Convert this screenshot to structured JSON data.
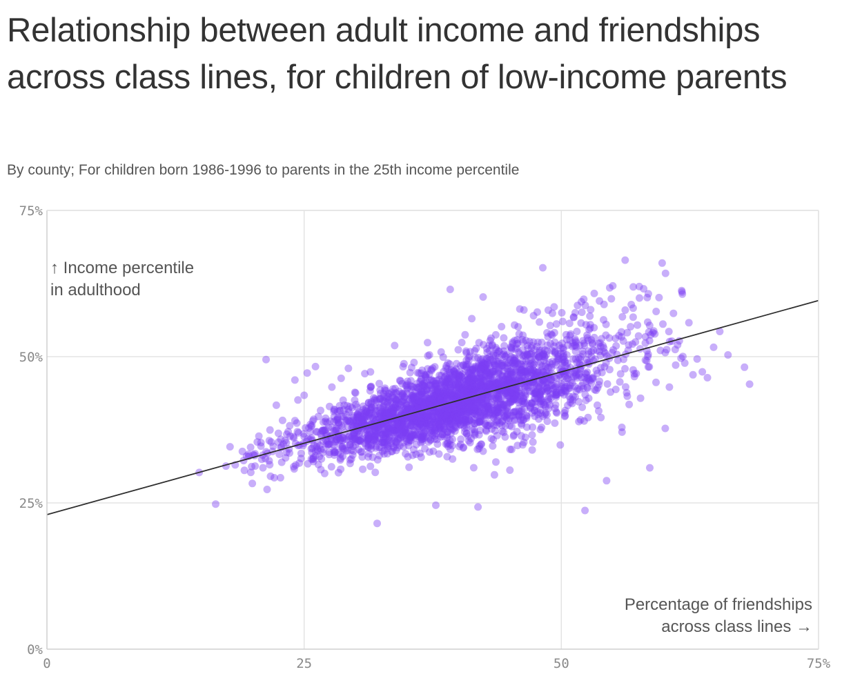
{
  "header": {
    "title": "Relationship between adult income and friendships across class lines, for children of low-income parents",
    "subtitle": "By county; For children born 1986-1996 to parents in the 25th income percentile"
  },
  "colors": {
    "point": "#7b3ff2",
    "trend_line": "#2e2e2e",
    "grid": "#e3e3e3",
    "axis": "#cfcfcf",
    "text": "#333333"
  },
  "chart_data": {
    "type": "scatter",
    "title": "Relationship between adult income and friendships across class lines, for children of low-income parents",
    "subtitle": "By county; For children born 1986-1996 to parents in the 25th income percentile",
    "xlabel": "Percentage of friendships across class lines",
    "xlabel_lines": [
      "Percentage of friendships",
      "across class lines →"
    ],
    "ylabel": "Income percentile in adulthood",
    "ylabel_lines": [
      "↑ Income percentile",
      "in adulthood"
    ],
    "xlim": [
      0,
      75
    ],
    "ylim": [
      0,
      75
    ],
    "x_ticks": [
      0,
      25,
      50,
      75
    ],
    "x_tick_labels": [
      "0",
      "25",
      "50",
      "75%"
    ],
    "y_ticks": [
      0,
      25,
      50,
      75
    ],
    "y_tick_labels": [
      "0%",
      "25%",
      "50%",
      "75%"
    ],
    "grid": true,
    "trend_line": {
      "x": [
        0,
        75
      ],
      "y": [
        23.0,
        59.6
      ]
    },
    "series": [
      {
        "note": "approximately 3000 counties shown; dense cloud along the trend line",
        "points": [
          [
            14.8,
            30.2
          ],
          [
            16.4,
            24.8
          ],
          [
            17.4,
            31.3
          ],
          [
            17.8,
            34.6
          ],
          [
            18.3,
            31.5
          ],
          [
            19.0,
            33.8
          ],
          [
            19.4,
            33.0
          ],
          [
            19.9,
            31.2
          ],
          [
            20.2,
            33.1
          ],
          [
            20.6,
            36.4
          ],
          [
            20.8,
            34.7
          ],
          [
            21.0,
            31.0
          ],
          [
            21.3,
            49.5
          ],
          [
            21.4,
            27.3
          ],
          [
            21.6,
            32.2
          ],
          [
            21.8,
            35.4
          ],
          [
            22.1,
            29.3
          ],
          [
            22.3,
            41.7
          ],
          [
            22.5,
            36.9
          ],
          [
            22.7,
            29.3
          ],
          [
            22.9,
            39.1
          ],
          [
            23.2,
            32.7
          ],
          [
            23.6,
            38.2
          ],
          [
            24.0,
            36.1
          ],
          [
            24.1,
            46.0
          ],
          [
            24.4,
            42.6
          ],
          [
            24.7,
            32.6
          ],
          [
            24.9,
            34.8
          ],
          [
            25.0,
            43.4
          ],
          [
            25.3,
            47.2
          ],
          [
            25.6,
            38.4
          ],
          [
            25.8,
            35.7
          ],
          [
            26.1,
            48.3
          ],
          [
            26.3,
            34.2
          ],
          [
            26.6,
            40.8
          ],
          [
            26.8,
            33.6
          ],
          [
            27.1,
            37.5
          ],
          [
            27.4,
            35.0
          ],
          [
            27.7,
            44.8
          ],
          [
            27.9,
            38.9
          ],
          [
            28.3,
            36.3
          ],
          [
            28.6,
            46.3
          ],
          [
            28.9,
            41.7
          ],
          [
            29.1,
            33.9
          ],
          [
            29.3,
            48.0
          ],
          [
            29.7,
            37.4
          ],
          [
            30.0,
            43.8
          ],
          [
            30.3,
            35.7
          ],
          [
            30.6,
            39.3
          ],
          [
            30.9,
            47.1
          ],
          [
            31.2,
            34.6
          ],
          [
            31.5,
            41.4
          ],
          [
            31.8,
            38.0
          ],
          [
            32.1,
            21.5
          ],
          [
            32.3,
            45.4
          ],
          [
            32.6,
            36.7
          ],
          [
            32.9,
            40.6
          ],
          [
            33.2,
            43.7
          ],
          [
            33.5,
            37.9
          ],
          [
            33.8,
            51.9
          ],
          [
            34.1,
            35.8
          ],
          [
            34.4,
            41.7
          ],
          [
            34.7,
            48.8
          ],
          [
            35.0,
            38.5
          ],
          [
            35.2,
            31.1
          ],
          [
            35.5,
            43.3
          ],
          [
            35.8,
            40.4
          ],
          [
            36.1,
            36.6
          ],
          [
            36.4,
            46.2
          ],
          [
            36.7,
            39.2
          ],
          [
            37.0,
            52.4
          ],
          [
            37.2,
            33.7
          ],
          [
            37.5,
            42.4
          ],
          [
            37.8,
            24.6
          ],
          [
            38.1,
            40.5
          ],
          [
            38.4,
            45.8
          ],
          [
            38.6,
            37.6
          ],
          [
            38.9,
            32.9
          ],
          [
            39.2,
            61.5
          ],
          [
            39.5,
            43.2
          ],
          [
            39.7,
            38.8
          ],
          [
            40.0,
            47.0
          ],
          [
            40.2,
            40.1
          ],
          [
            40.5,
            34.5
          ],
          [
            40.8,
            44.6
          ],
          [
            41.1,
            41.3
          ],
          [
            41.3,
            56.5
          ],
          [
            41.6,
            37.1
          ],
          [
            41.9,
            24.3
          ],
          [
            42.1,
            45.2
          ],
          [
            42.4,
            60.2
          ],
          [
            42.7,
            40.3
          ],
          [
            43.0,
            49.4
          ],
          [
            43.2,
            36.0
          ],
          [
            43.5,
            29.8
          ],
          [
            43.8,
            44.1
          ],
          [
            44.1,
            41.8
          ],
          [
            44.4,
            53.2
          ],
          [
            44.7,
            39.4
          ],
          [
            45.0,
            30.6
          ],
          [
            45.2,
            47.3
          ],
          [
            45.5,
            42.8
          ],
          [
            45.8,
            55.1
          ],
          [
            46.1,
            38.6
          ],
          [
            46.4,
            45.9
          ],
          [
            46.7,
            50.4
          ],
          [
            47.0,
            41.2
          ],
          [
            47.3,
            57.0
          ],
          [
            47.6,
            44.0
          ],
          [
            47.9,
            48.6
          ],
          [
            48.2,
            65.2
          ],
          [
            48.4,
            40.1
          ],
          [
            48.7,
            53.4
          ],
          [
            49.0,
            46.1
          ],
          [
            49.3,
            58.5
          ],
          [
            49.6,
            43.6
          ],
          [
            49.9,
            34.9
          ],
          [
            50.2,
            51.2
          ],
          [
            50.5,
            47.4
          ],
          [
            50.8,
            55.7
          ],
          [
            51.1,
            42.6
          ],
          [
            51.4,
            49.6
          ],
          [
            51.7,
            38.9
          ],
          [
            52.0,
            57.6
          ],
          [
            52.3,
            23.7
          ],
          [
            52.6,
            52.8
          ],
          [
            52.9,
            45.5
          ],
          [
            53.2,
            60.8
          ],
          [
            53.5,
            41.7
          ],
          [
            53.8,
            50.2
          ],
          [
            54.1,
            56.3
          ],
          [
            54.4,
            28.8
          ],
          [
            54.7,
            47.8
          ],
          [
            55.0,
            62.1
          ],
          [
            55.3,
            44.4
          ],
          [
            55.6,
            53.6
          ],
          [
            55.9,
            37.1
          ],
          [
            56.2,
            66.5
          ],
          [
            56.5,
            51.1
          ],
          [
            56.8,
            58.9
          ],
          [
            57.1,
            46.6
          ],
          [
            57.4,
            55.4
          ],
          [
            57.7,
            42.9
          ],
          [
            58.0,
            61.6
          ],
          [
            58.3,
            49.3
          ],
          [
            58.6,
            31.0
          ],
          [
            58.9,
            54.1
          ],
          [
            59.2,
            45.6
          ],
          [
            59.5,
            60.1
          ],
          [
            59.8,
            66.0
          ],
          [
            60.1,
            50.7
          ],
          [
            60.5,
            44.8
          ],
          [
            60.9,
            57.4
          ],
          [
            61.3,
            52.0
          ],
          [
            61.7,
            61.3
          ],
          [
            62.0,
            48.9
          ],
          [
            62.4,
            55.8
          ],
          [
            62.8,
            46.9
          ],
          [
            63.2,
            49.6
          ],
          [
            63.7,
            47.4
          ],
          [
            64.2,
            46.4
          ],
          [
            64.8,
            51.6
          ],
          [
            65.4,
            54.3
          ],
          [
            66.2,
            50.3
          ],
          [
            67.8,
            48.2
          ],
          [
            68.3,
            45.3
          ]
        ]
      }
    ]
  }
}
